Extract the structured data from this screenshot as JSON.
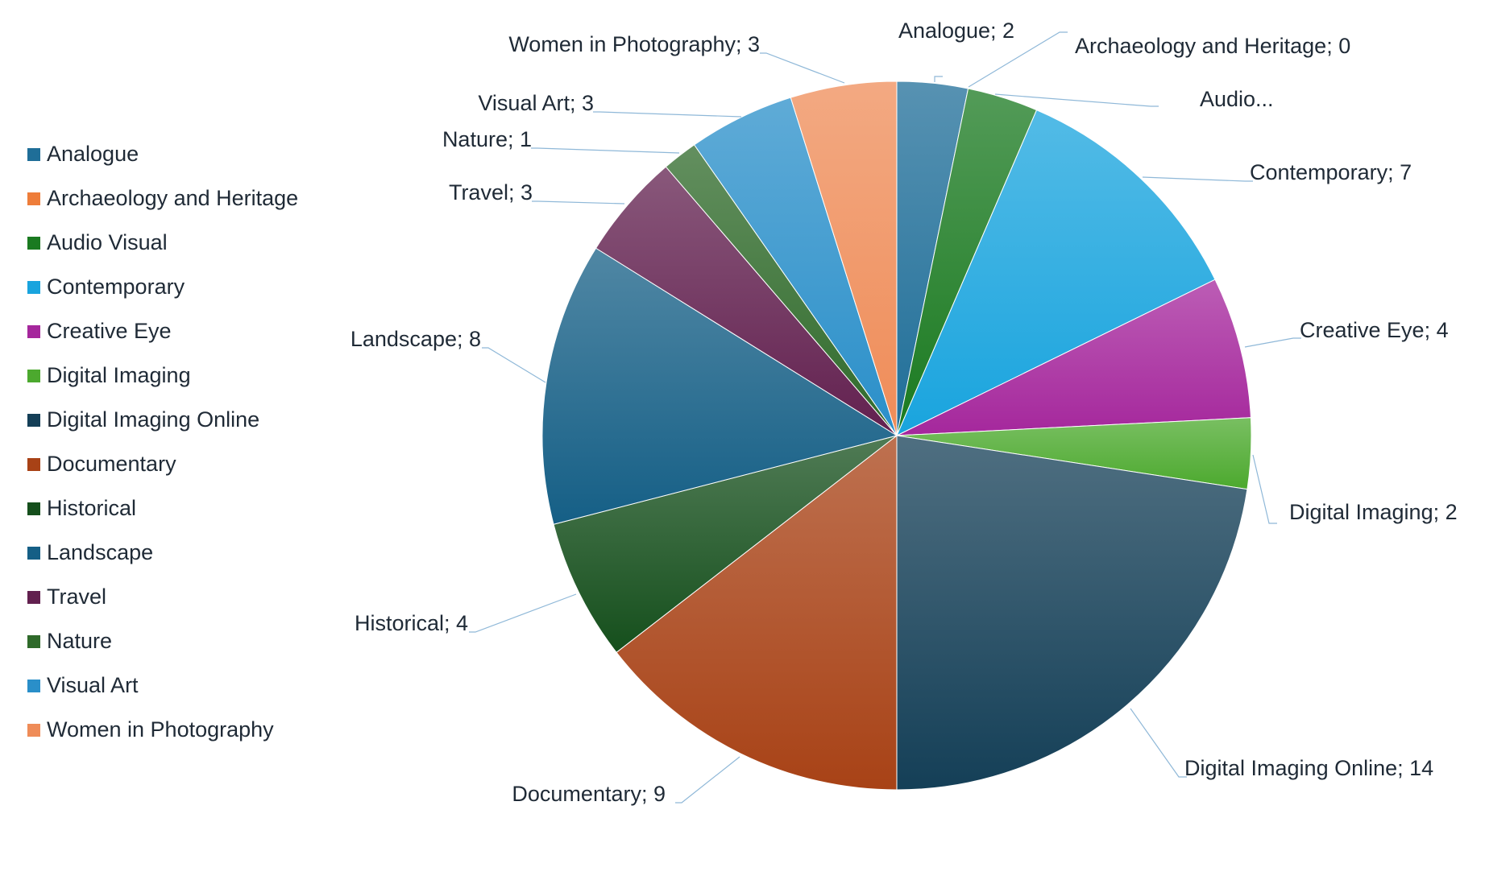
{
  "chart_data": {
    "type": "pie",
    "title": "",
    "categories": [
      "Analogue",
      "Archaeology and Heritage",
      "Audio Visual",
      "Contemporary",
      "Creative Eye",
      "Digital Imaging",
      "Digital Imaging Online",
      "Documentary",
      "Historical",
      "Landscape",
      "Travel",
      "Nature",
      "Visual Art",
      "Women in Photography"
    ],
    "values": [
      2,
      0,
      2,
      7,
      4,
      2,
      14,
      9,
      4,
      8,
      3,
      1,
      3,
      3
    ],
    "data_labels": [
      "Analogue; 2",
      "Archaeology and Heritage; 0",
      "Audio...",
      "Contemporary; 7",
      "Creative Eye; 4",
      "Digital Imaging; 2",
      "Digital Imaging Online; 14",
      "Documentary; 9",
      "Historical; 4",
      "Landscape; 8",
      "Travel; 3",
      "Nature; 1",
      "Visual Art; 3",
      "Women in Photography; 3"
    ],
    "colors": [
      "#1f6e98",
      "#ee7d3a",
      "#1a7a20",
      "#19a4de",
      "#a5279c",
      "#4ca92e",
      "#143f57",
      "#a84216",
      "#154f1c",
      "#155f86",
      "#62204f",
      "#2f6a2a",
      "#2a8fc9",
      "#ef8c58"
    ],
    "legend_position": "left"
  }
}
